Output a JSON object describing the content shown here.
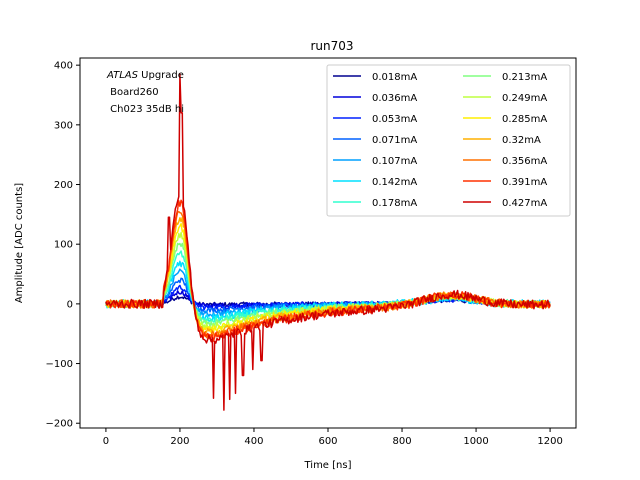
{
  "chart_data": {
    "type": "line",
    "title": "run703",
    "xlabel": "Time [ns]",
    "ylabel": "Amplitude [ADC counts]",
    "xlim": [
      -70,
      1270
    ],
    "ylim": [
      -208,
      412
    ],
    "xticks": [
      0,
      200,
      400,
      600,
      800,
      1000,
      1200
    ],
    "yticks": [
      -200,
      -100,
      0,
      100,
      200,
      300,
      400
    ],
    "grid": false,
    "legend_position": "top-right",
    "legend_columns": 2,
    "annotation": {
      "italic": "ATLAS",
      "rest": " Upgrade",
      "line2": " Board260",
      "line3": " Ch023 35dB hi"
    },
    "series": [
      {
        "name": "0.018mA",
        "color": "#00008f",
        "pulse_peak": 12,
        "undershoot": -2
      },
      {
        "name": "0.036mA",
        "color": "#0000db",
        "pulse_peak": 20,
        "undershoot": -5
      },
      {
        "name": "0.053mA",
        "color": "#0020ff",
        "pulse_peak": 28,
        "undershoot": -10
      },
      {
        "name": "0.071mA",
        "color": "#0060ff",
        "pulse_peak": 40,
        "undershoot": -18
      },
      {
        "name": "0.107mA",
        "color": "#00a0ff",
        "pulse_peak": 55,
        "undershoot": -28
      },
      {
        "name": "0.142mA",
        "color": "#00e0ff",
        "pulse_peak": 70,
        "undershoot": -38
      },
      {
        "name": "0.178mA",
        "color": "#30ffcf",
        "pulse_peak": 85,
        "undershoot": -45
      },
      {
        "name": "0.213mA",
        "color": "#80ff80",
        "pulse_peak": 100,
        "undershoot": -52
      },
      {
        "name": "0.249mA",
        "color": "#bfff40",
        "pulse_peak": 115,
        "undershoot": -60
      },
      {
        "name": "0.285mA",
        "color": "#ffef00",
        "pulse_peak": 130,
        "undershoot": -67
      },
      {
        "name": "0.32mA",
        "color": "#ffb000",
        "pulse_peak": 145,
        "undershoot": -74
      },
      {
        "name": "0.356mA",
        "color": "#ff7000",
        "pulse_peak": 158,
        "undershoot": -80
      },
      {
        "name": "0.391mA",
        "color": "#ff3000",
        "pulse_peak": 170,
        "undershoot": -85
      },
      {
        "name": "0.427mA",
        "color": "#cf0000",
        "pulse_peak": 182,
        "undershoot": -90
      }
    ],
    "spikes": [
      {
        "x": 170,
        "y": 145
      },
      {
        "x": 200,
        "y": 385
      },
      {
        "x": 205,
        "y": 320
      },
      {
        "x": 290,
        "y": -158
      },
      {
        "x": 318,
        "y": -178
      },
      {
        "x": 335,
        "y": -160
      },
      {
        "x": 350,
        "y": -150
      },
      {
        "x": 370,
        "y": -120
      },
      {
        "x": 398,
        "y": -110
      },
      {
        "x": 420,
        "y": -95
      }
    ]
  }
}
